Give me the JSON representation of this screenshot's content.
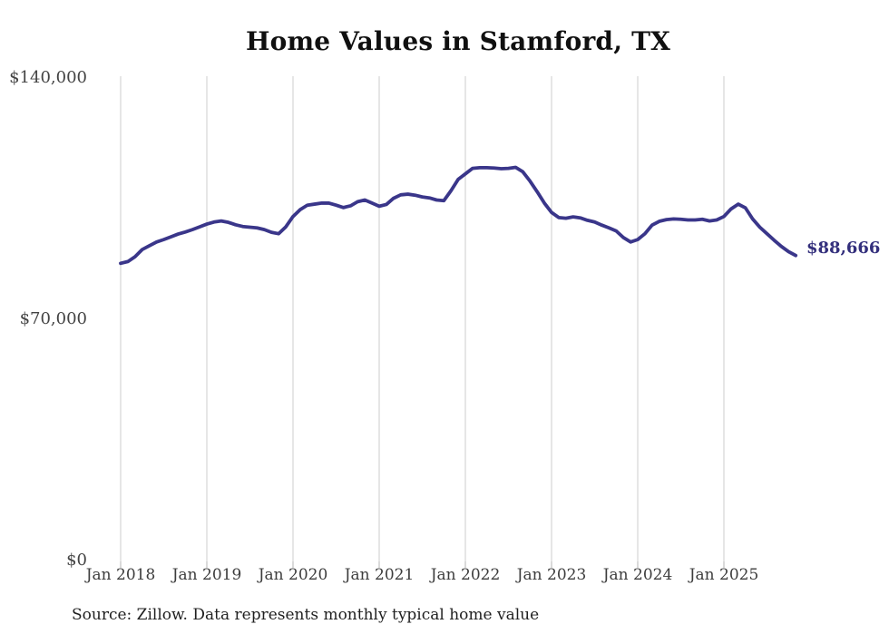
{
  "title": "Home Values in Stamford, TX",
  "source_note": "Source: Zillow. Data represents monthly typical home value",
  "latest_value_label": "$88,666",
  "colors": {
    "background": "#ffffff",
    "title": "#101010",
    "axis_labels": "#444444",
    "gridline": "#cccccc",
    "tick": "#b5b5b5",
    "line": "#3a368a",
    "latest_label": "#332f7c",
    "source_text": "#1f1f1f"
  },
  "chart_data": {
    "type": "line",
    "title": "Home Values in Stamford, TX",
    "xlabel": "",
    "ylabel": "",
    "x_start": "Jan 2018",
    "x_end": "Nov 2025",
    "x_interval": "month",
    "ylim": [
      0,
      140000
    ],
    "grid": "vertical-only",
    "legend": "none",
    "xticks": [
      "Jan 2018",
      "Jan 2019",
      "Jan 2020",
      "Jan 2021",
      "Jan 2022",
      "Jan 2023",
      "Jan 2024",
      "Jan 2025"
    ],
    "yticks": [
      {
        "label": "$140,000",
        "value": 140000
      },
      {
        "label": "$70,000",
        "value": 70000
      },
      {
        "label": "$0",
        "value": 0
      }
    ],
    "latest_value": 88666,
    "series": [
      {
        "name": "Typical home value",
        "start_month": "2018-01",
        "values": [
          86400,
          86900,
          88300,
          90400,
          91500,
          92600,
          93300,
          94100,
          94900,
          95500,
          96200,
          97000,
          97800,
          98400,
          98700,
          98300,
          97600,
          97100,
          96900,
          96700,
          96200,
          95400,
          95000,
          97000,
          100000,
          102000,
          103300,
          103600,
          103900,
          103900,
          103300,
          102600,
          103100,
          104300,
          104800,
          103900,
          103000,
          103500,
          105300,
          106300,
          106500,
          106200,
          105700,
          105400,
          104800,
          104600,
          107500,
          110800,
          112400,
          114000,
          114200,
          114200,
          114100,
          113900,
          114000,
          114300,
          113000,
          110300,
          107200,
          103900,
          101200,
          99700,
          99500,
          99900,
          99600,
          98900,
          98400,
          97500,
          96700,
          95800,
          93900,
          92600,
          93300,
          95000,
          97500,
          98600,
          99100,
          99300,
          99200,
          99000,
          99000,
          99200,
          98700,
          99000,
          100000,
          102200,
          103600,
          102500,
          99300,
          96900,
          95000,
          93100,
          91300,
          89800,
          88666
        ]
      }
    ]
  }
}
